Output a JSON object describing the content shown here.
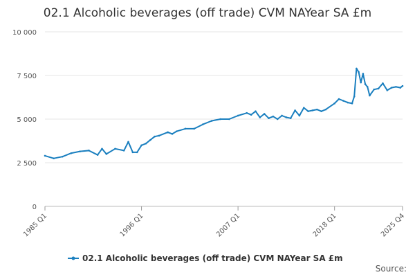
{
  "chart_data": {
    "type": "line",
    "title": "02.1 Alcoholic beverages (off trade) CVM NAYear SA £m",
    "xlabel": "",
    "ylabel": "",
    "ylim": [
      0,
      10000
    ],
    "yticks": [
      0,
      2500,
      5000,
      7500,
      10000
    ],
    "ytick_labels": [
      "0",
      "2 500",
      "5 000",
      "7 500",
      "10 000"
    ],
    "xticks": [
      1985.0,
      1996.0,
      2007.0,
      2018.0,
      2025.75
    ],
    "xtick_labels": [
      "1985 Q1",
      "1996 Q1",
      "2007 Q1",
      "2018 Q1",
      "2025 Q4"
    ],
    "xlim": [
      1985.0,
      2025.75
    ],
    "grid": true,
    "legend": "bottom",
    "series": [
      {
        "name": "02.1 Alcoholic beverages (off trade) CVM NAYear SA £m",
        "color": "#1a7fbf",
        "x": [
          1985.0,
          1986.0,
          1987.0,
          1988.0,
          1989.0,
          1990.0,
          1991.0,
          1991.5,
          1992.0,
          1993.0,
          1994.0,
          1994.5,
          1995.0,
          1995.5,
          1996.0,
          1996.5,
          1997.0,
          1997.5,
          1998.0,
          1999.0,
          1999.5,
          2000.0,
          2001.0,
          2002.0,
          2003.0,
          2004.0,
          2005.0,
          2006.0,
          2007.0,
          2008.0,
          2008.5,
          2009.0,
          2009.5,
          2010.0,
          2010.5,
          2011.0,
          2011.5,
          2012.0,
          2012.5,
          2013.0,
          2013.5,
          2014.0,
          2014.5,
          2015.0,
          2015.5,
          2016.0,
          2016.5,
          2017.0,
          2018.0,
          2018.5,
          2019.0,
          2019.5,
          2020.0,
          2020.25,
          2020.5,
          2020.75,
          2021.0,
          2021.25,
          2021.5,
          2021.75,
          2022.0,
          2022.5,
          2023.0,
          2023.5,
          2024.0,
          2024.5,
          2025.0,
          2025.5,
          2025.75
        ],
        "values": [
          2900,
          2750,
          2850,
          3050,
          3150,
          3200,
          2950,
          3300,
          3000,
          3300,
          3200,
          3700,
          3100,
          3100,
          3500,
          3600,
          3800,
          4000,
          4050,
          4250,
          4150,
          4300,
          4450,
          4450,
          4700,
          4900,
          5000,
          5000,
          5200,
          5350,
          5250,
          5450,
          5100,
          5300,
          5050,
          5150,
          5000,
          5200,
          5100,
          5050,
          5500,
          5200,
          5650,
          5450,
          5500,
          5550,
          5450,
          5550,
          5900,
          6150,
          6050,
          5950,
          5900,
          6300,
          7900,
          7700,
          7100,
          7600,
          7000,
          6850,
          6350,
          6700,
          6750,
          7050,
          6650,
          6800,
          6850,
          6800,
          6900
        ]
      }
    ]
  },
  "source": {
    "label": "Source:"
  }
}
